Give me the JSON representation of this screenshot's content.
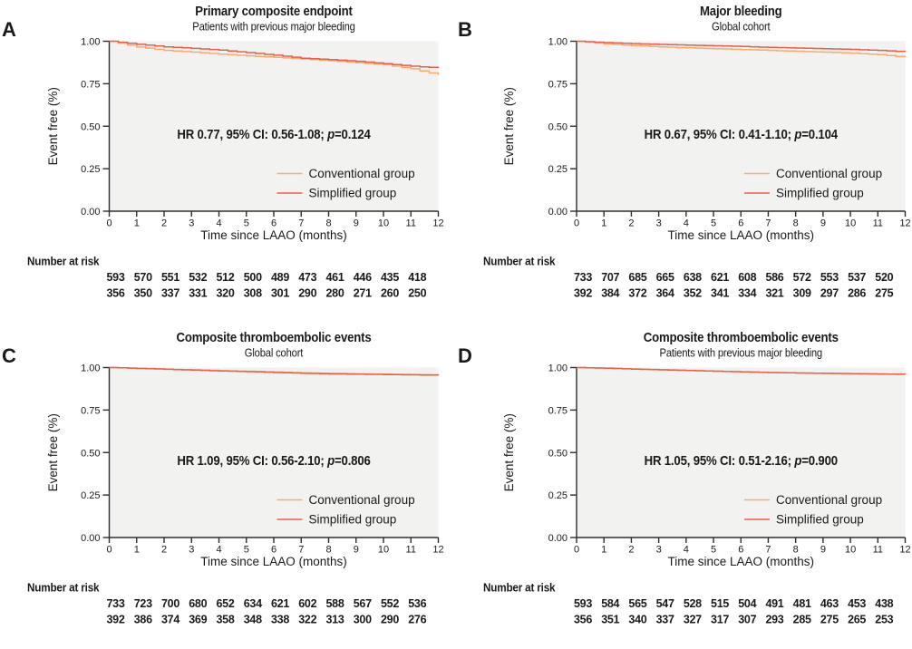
{
  "shared": {
    "y_ticks": [
      "0.00",
      "0.25",
      "0.50",
      "0.75",
      "1.00"
    ],
    "x_ticks": [
      "0",
      "1",
      "2",
      "3",
      "4",
      "5",
      "6",
      "7",
      "8",
      "9",
      "10",
      "11",
      "12"
    ],
    "colors": {
      "conventional": "#F9AC6E",
      "simplified": "#E8604C",
      "conventional_text": "#F5A15C",
      "simplified_text": "#E4574C",
      "plot_background": "#F2F2F1",
      "axis": "#2E2E2E",
      "text": "#1A1A1A"
    }
  },
  "chart_data": [
    {
      "panel_label": "A",
      "type": "line",
      "title": "Primary composite endpoint",
      "subtitle": "Patients with previous major bleeding",
      "xlabel": "Time since LAAO (months)",
      "ylabel": "Event free (%)",
      "ylim": [
        0,
        1
      ],
      "x": [
        0,
        1,
        2,
        3,
        4,
        5,
        6,
        7,
        8,
        9,
        10,
        11,
        12
      ],
      "series": [
        {
          "name": "Conventional group",
          "values": [
            1.0,
            0.966,
            0.946,
            0.936,
            0.924,
            0.914,
            0.905,
            0.896,
            0.885,
            0.873,
            0.861,
            0.838,
            0.801
          ]
        },
        {
          "name": "Simplified group",
          "values": [
            1.0,
            0.982,
            0.967,
            0.958,
            0.948,
            0.933,
            0.918,
            0.9,
            0.892,
            0.882,
            0.868,
            0.853,
            0.843
          ]
        }
      ],
      "hr_annotation": {
        "main": "HR 0.77, 95% CI: 0.56-1.08; ",
        "italic": "p",
        "suffix": "=0.124"
      },
      "number_at_risk": {
        "label": "Number at risk",
        "conventional": [
          "593",
          "570",
          "551",
          "532",
          "512",
          "500",
          "489",
          "473",
          "461",
          "446",
          "435",
          "418"
        ],
        "simplified": [
          "356",
          "350",
          "337",
          "331",
          "320",
          "308",
          "301",
          "290",
          "280",
          "271",
          "260",
          "250"
        ]
      }
    },
    {
      "panel_label": "B",
      "type": "line",
      "title": "Major bleeding",
      "subtitle": "Global cohort",
      "xlabel": "Time since LAAO (months)",
      "ylabel": "Event free (%)",
      "ylim": [
        0,
        1
      ],
      "x": [
        0,
        1,
        2,
        3,
        4,
        5,
        6,
        7,
        8,
        9,
        10,
        11,
        12
      ],
      "series": [
        {
          "name": "Conventional group",
          "values": [
            1.0,
            0.984,
            0.974,
            0.967,
            0.961,
            0.956,
            0.951,
            0.946,
            0.941,
            0.936,
            0.93,
            0.921,
            0.906
          ]
        },
        {
          "name": "Simplified group",
          "values": [
            1.0,
            0.992,
            0.986,
            0.981,
            0.977,
            0.973,
            0.969,
            0.964,
            0.96,
            0.956,
            0.952,
            0.946,
            0.938
          ]
        }
      ],
      "hr_annotation": {
        "main": "HR 0.67, 95% CI: 0.41-1.10; ",
        "italic": "p",
        "suffix": "=0.104"
      },
      "number_at_risk": {
        "label": "Number at risk",
        "conventional": [
          "733",
          "707",
          "685",
          "665",
          "638",
          "621",
          "608",
          "586",
          "572",
          "553",
          "537",
          "520"
        ],
        "simplified": [
          "392",
          "384",
          "372",
          "364",
          "352",
          "341",
          "334",
          "321",
          "309",
          "297",
          "286",
          "275"
        ]
      }
    },
    {
      "panel_label": "C",
      "type": "line",
      "title": "Composite thromboembolic events",
      "subtitle": "Global cohort",
      "xlabel": "Time since LAAO (months)",
      "ylabel": "Event free (%)",
      "ylim": [
        0,
        1
      ],
      "x": [
        0,
        1,
        2,
        3,
        4,
        5,
        6,
        7,
        8,
        9,
        10,
        11,
        12
      ],
      "series": [
        {
          "name": "Conventional group",
          "values": [
            1.0,
            0.996,
            0.991,
            0.987,
            0.982,
            0.978,
            0.974,
            0.969,
            0.966,
            0.963,
            0.961,
            0.959,
            0.957
          ]
        },
        {
          "name": "Simplified group",
          "values": [
            1.0,
            0.995,
            0.99,
            0.985,
            0.98,
            0.976,
            0.971,
            0.966,
            0.963,
            0.961,
            0.959,
            0.957,
            0.955
          ]
        }
      ],
      "hr_annotation": {
        "main": "HR 1.09, 95% CI: 0.56-2.10; ",
        "italic": "p",
        "suffix": "=0.806"
      },
      "number_at_risk": {
        "label": "Number at risk",
        "conventional": [
          "733",
          "723",
          "700",
          "680",
          "652",
          "634",
          "621",
          "602",
          "588",
          "567",
          "552",
          "536"
        ],
        "simplified": [
          "392",
          "386",
          "374",
          "369",
          "358",
          "348",
          "338",
          "322",
          "313",
          "300",
          "290",
          "276"
        ]
      }
    },
    {
      "panel_label": "D",
      "type": "line",
      "title": "Composite thromboembolic events",
      "subtitle": "Patients with previous major bleeding",
      "xlabel": "Time since LAAO (months)",
      "ylabel": "Event free (%)",
      "ylim": [
        0,
        1
      ],
      "x": [
        0,
        1,
        2,
        3,
        4,
        5,
        6,
        7,
        8,
        9,
        10,
        11,
        12
      ],
      "series": [
        {
          "name": "Conventional group",
          "values": [
            1.0,
            0.997,
            0.992,
            0.988,
            0.983,
            0.979,
            0.975,
            0.971,
            0.968,
            0.966,
            0.964,
            0.962,
            0.961
          ]
        },
        {
          "name": "Simplified group",
          "values": [
            1.0,
            0.996,
            0.991,
            0.987,
            0.983,
            0.979,
            0.975,
            0.971,
            0.968,
            0.966,
            0.964,
            0.962,
            0.96
          ]
        }
      ],
      "hr_annotation": {
        "main": "HR 1.05, 95% CI: 0.51-2.16; ",
        "italic": "p",
        "suffix": "=0.900"
      },
      "number_at_risk": {
        "label": "Number at risk",
        "conventional": [
          "593",
          "584",
          "565",
          "547",
          "528",
          "515",
          "504",
          "491",
          "481",
          "463",
          "453",
          "438"
        ],
        "simplified": [
          "356",
          "351",
          "340",
          "337",
          "327",
          "317",
          "307",
          "293",
          "285",
          "275",
          "265",
          "253"
        ]
      }
    }
  ]
}
